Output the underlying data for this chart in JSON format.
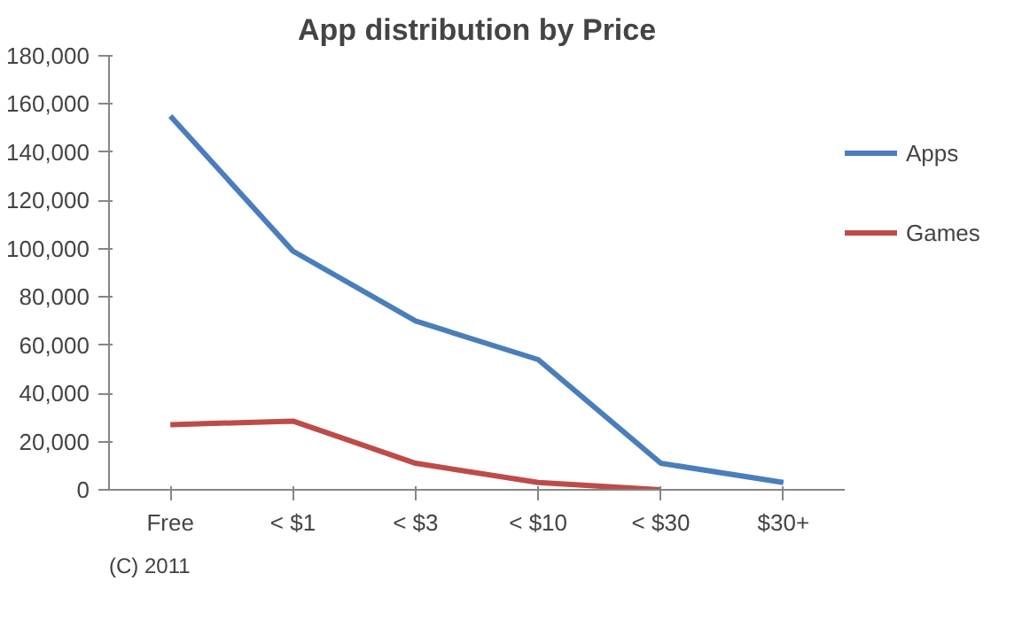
{
  "chart_data": {
    "type": "line",
    "title": "App distribution by Price",
    "categories": [
      "Free",
      "< $1",
      "< $3",
      "< $10",
      "< $30",
      "$30+"
    ],
    "series": [
      {
        "name": "Apps",
        "color": "#4a7ebb",
        "values": [
          155000,
          99000,
          70000,
          54000,
          11000,
          3000
        ]
      },
      {
        "name": "Games",
        "color": "#be4b48",
        "values": [
          27000,
          28500,
          11000,
          3000,
          0,
          null
        ]
      }
    ],
    "ylim": [
      0,
      180000
    ],
    "yticks": [
      {
        "value": 0,
        "label": "0"
      },
      {
        "value": 20000,
        "label": "20,000"
      },
      {
        "value": 40000,
        "label": "40,000"
      },
      {
        "value": 60000,
        "label": "60,000"
      },
      {
        "value": 80000,
        "label": "80,000"
      },
      {
        "value": 100000,
        "label": "100,000"
      },
      {
        "value": 120000,
        "label": "120,000"
      },
      {
        "value": 140000,
        "label": "140,000"
      },
      {
        "value": 160000,
        "label": "160,000"
      },
      {
        "value": 180000,
        "label": "180,000"
      }
    ],
    "legend": "right",
    "marker": "none",
    "line_style": "solid",
    "annotations": [
      "(C) 2011"
    ]
  }
}
